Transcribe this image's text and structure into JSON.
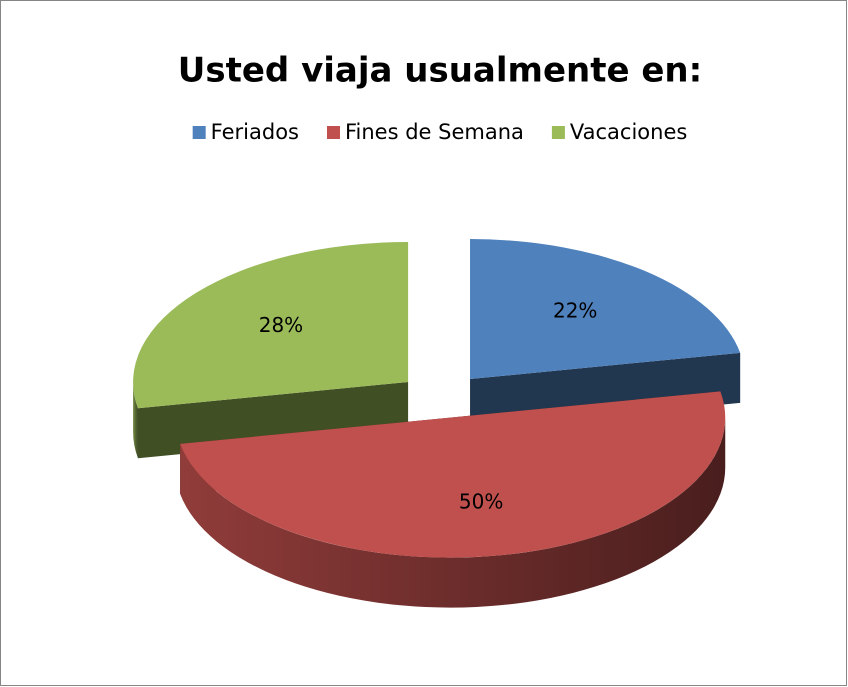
{
  "chart_data": {
    "type": "pie",
    "title": "Usted viaja usualmente en:",
    "categories": [
      "Feriados",
      "Fines de Semana",
      "Vacaciones"
    ],
    "values": [
      22,
      50,
      28
    ],
    "value_labels": [
      "22%",
      "50%",
      "28%"
    ],
    "colors": [
      "#4f81bd",
      "#c0504d",
      "#9bbb59"
    ],
    "legend": "top"
  }
}
